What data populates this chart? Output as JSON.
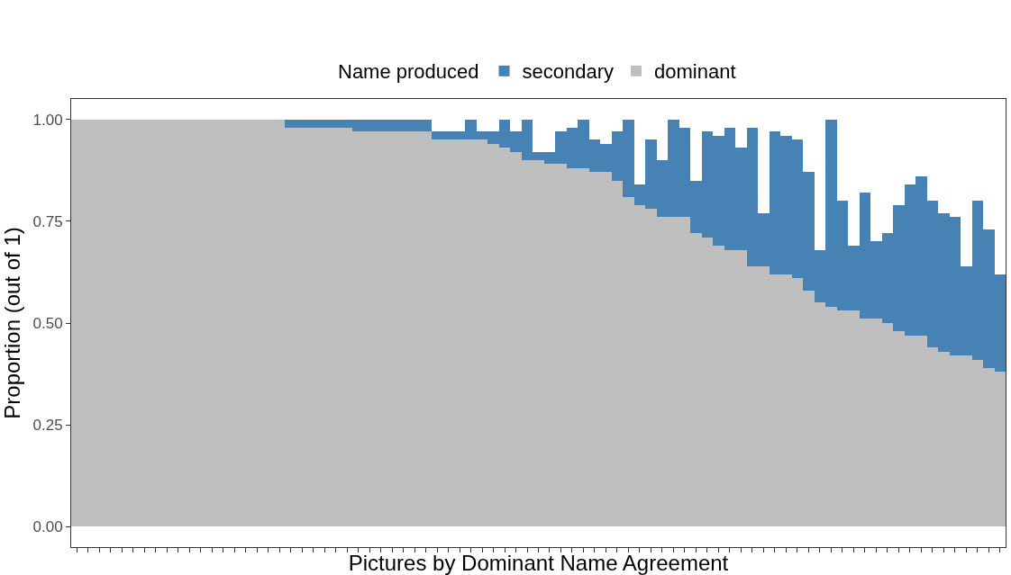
{
  "chart_data": {
    "type": "bar",
    "stacked": true,
    "xlabel": "Pictures by Dominant Name Agreement",
    "ylabel": "Proportion (out of 1)",
    "legend_title": "Name produced",
    "legend": "top",
    "tick_labels": "y",
    "categories": [
      null,
      null,
      null,
      null,
      null,
      null,
      null,
      null,
      null,
      null,
      null,
      null,
      null,
      null,
      null,
      null,
      null,
      null,
      null,
      null,
      null,
      null,
      null,
      null,
      null,
      null,
      null,
      null,
      null,
      null,
      null,
      null,
      null,
      null,
      null,
      null,
      null,
      null,
      null,
      null,
      null,
      null,
      null,
      null,
      null,
      null,
      null,
      null,
      null,
      null,
      null,
      null,
      null,
      null,
      null,
      null,
      null,
      null,
      null,
      null,
      null,
      null,
      null,
      null,
      null,
      null,
      null,
      null,
      null,
      null,
      null,
      null,
      null,
      null,
      null,
      null,
      null,
      null,
      null,
      null,
      null,
      null,
      null
    ],
    "ylim": [
      -0.05,
      1.05
    ],
    "yticks": [
      {
        "value": 0,
        "label": "0.00"
      },
      {
        "value": 0.25,
        "label": "0.25"
      },
      {
        "value": 0.5,
        "label": "0.50"
      },
      {
        "value": 0.75,
        "label": "0.75"
      },
      {
        "value": 1,
        "label": "1.00"
      }
    ],
    "series": [
      {
        "name": "dominant",
        "color": "#bebebe",
        "values": [
          1,
          1,
          1,
          1,
          1,
          1,
          1,
          1,
          1,
          1,
          1,
          1,
          1,
          1,
          1,
          1,
          1,
          1,
          1,
          0.98,
          0.98,
          0.98,
          0.98,
          0.98,
          0.98,
          0.97,
          0.97,
          0.97,
          0.97,
          0.97,
          0.97,
          0.97,
          0.95,
          0.95,
          0.95,
          0.95,
          0.95,
          0.94,
          0.93,
          0.92,
          0.9,
          0.9,
          0.89,
          0.89,
          0.88,
          0.88,
          0.87,
          0.87,
          0.85,
          0.81,
          0.79,
          0.78,
          0.76,
          0.76,
          0.76,
          0.72,
          0.71,
          0.69,
          0.68,
          0.68,
          0.64,
          0.64,
          0.62,
          0.62,
          0.61,
          0.58,
          0.55,
          0.54,
          0.53,
          0.53,
          0.51,
          0.51,
          0.5,
          0.48,
          0.47,
          0.47,
          0.44,
          0.43,
          0.42,
          0.42,
          0.41,
          0.39,
          0.38
        ]
      },
      {
        "name": "secondary",
        "color": "#4682b4",
        "values": [
          0,
          0,
          0,
          0,
          0,
          0,
          0,
          0,
          0,
          0,
          0,
          0,
          0,
          0,
          0,
          0,
          0,
          0,
          0,
          0.02,
          0.02,
          0.02,
          0.02,
          0.02,
          0.02,
          0.03,
          0.03,
          0.03,
          0.03,
          0.03,
          0.03,
          0.03,
          0.02,
          0.02,
          0.02,
          0.05,
          0.02,
          0.03,
          0.07,
          0.05,
          0.1,
          0.02,
          0.03,
          0.08,
          0.1,
          0.12,
          0.08,
          0.07,
          0.12,
          0.19,
          0.05,
          0.17,
          0.14,
          0.24,
          0.22,
          0.13,
          0.26,
          0.27,
          0.3,
          0.25,
          0.34,
          0.13,
          0.35,
          0.34,
          0.34,
          0.29,
          0.13,
          0.46,
          0.27,
          0.16,
          0.31,
          0.19,
          0.22,
          0.31,
          0.37,
          0.39,
          0.36,
          0.34,
          0.34,
          0.22,
          0.39,
          0.34,
          0.24
        ]
      }
    ]
  }
}
